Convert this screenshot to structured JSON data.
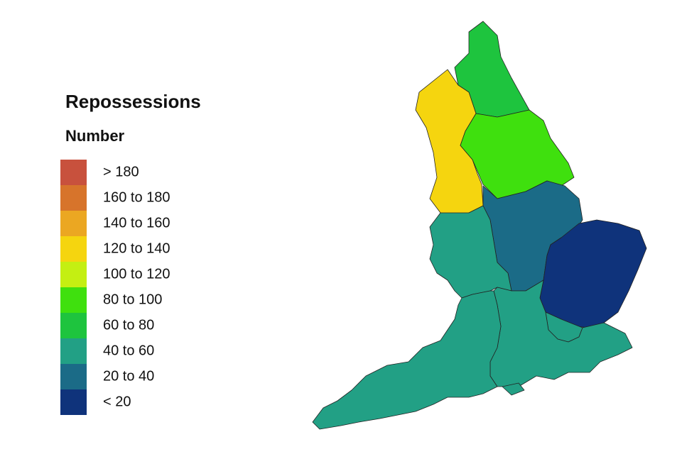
{
  "title": "Repossessions",
  "subtitle": "Number",
  "legend": {
    "items": [
      {
        "label": "> 180",
        "color": "#c8513d"
      },
      {
        "label": "160 to 180",
        "color": "#d7742b"
      },
      {
        "label": "140 to 160",
        "color": "#eba722"
      },
      {
        "label": "120 to 140",
        "color": "#f5d50f"
      },
      {
        "label": "100 to 120",
        "color": "#c4ef12"
      },
      {
        "label": "80 to 100",
        "color": "#3fe00e"
      },
      {
        "label": "60 to 80",
        "color": "#1ec43e"
      },
      {
        "label": "40 to 60",
        "color": "#22a085"
      },
      {
        "label": "20 to 40",
        "color": "#1b6b87"
      },
      {
        "label": "< 20",
        "color": "#0f337b"
      }
    ]
  },
  "map": {
    "regions": [
      {
        "color": "#1ec43e"
      },
      {
        "color": "#f5d50f"
      },
      {
        "color": "#3fe00e"
      },
      {
        "color": "#1b6b87"
      },
      {
        "color": "#0f337b"
      },
      {
        "color": "#22a085"
      },
      {
        "color": "#22a085"
      },
      {
        "color": "#22a085"
      },
      {
        "color": "#22a085"
      }
    ]
  }
}
